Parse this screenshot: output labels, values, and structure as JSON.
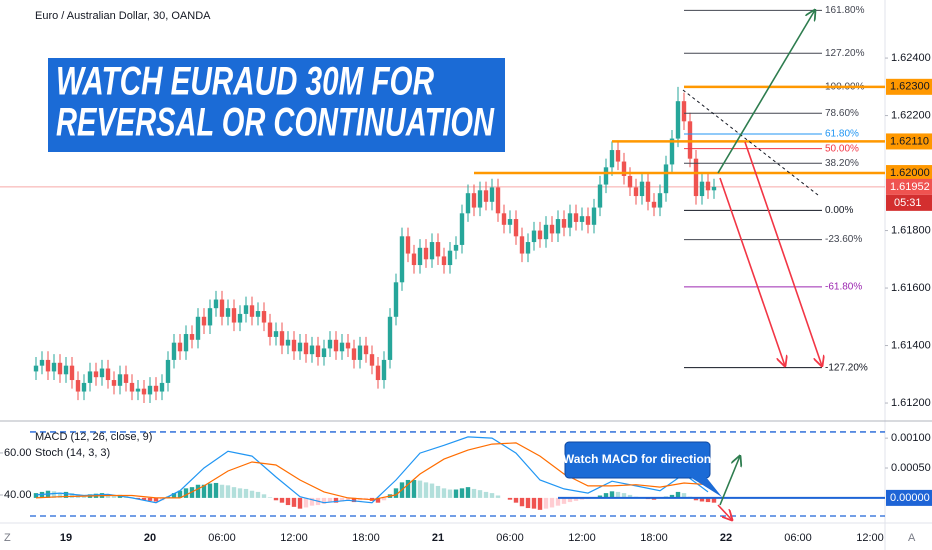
{
  "ui": {
    "left_icon": "Z",
    "right_icon": "A"
  },
  "chart_data": [
    {
      "type": "candlestick",
      "title": "Euro / Australian Dollar, 30, OANDA",
      "annotation": [
        "WATCH EURAUD 30M FOR",
        "REVERSAL OR CONTINUATION"
      ],
      "xlim": [
        -6,
        141.5
      ],
      "xticks": [
        {
          "value": 5,
          "label": "19"
        },
        {
          "value": 19,
          "label": "20"
        },
        {
          "value": 31,
          "label": "06:00"
        },
        {
          "value": 43,
          "label": "12:00"
        },
        {
          "value": 55,
          "label": "18:00"
        },
        {
          "value": 67,
          "label": "21"
        },
        {
          "value": 79,
          "label": "06:00"
        },
        {
          "value": 91,
          "label": "12:00"
        },
        {
          "value": 103,
          "label": "18:00"
        },
        {
          "value": 115,
          "label": "22"
        },
        {
          "value": 127,
          "label": "06:00"
        },
        {
          "value": 139,
          "label": "12:00"
        }
      ],
      "ylim": [
        1.61141,
        1.62602
      ],
      "yticks": [
        {
          "value": 1.624,
          "label": "1.62400"
        },
        {
          "value": 1.622,
          "label": "1.62200"
        },
        {
          "value": 1.618,
          "label": "1.61800"
        },
        {
          "value": 1.616,
          "label": "1.61600"
        },
        {
          "value": 1.614,
          "label": "1.61400"
        },
        {
          "value": 1.612,
          "label": "1.61200"
        }
      ],
      "colors": {
        "up": "#26a69a",
        "down": "#ef5350"
      },
      "open": [
        1.6131,
        1.6133,
        1.6135,
        1.6131,
        1.6134,
        1.613,
        1.6133,
        1.6128,
        1.6124,
        1.6127,
        1.6131,
        1.6129,
        1.6132,
        1.6128,
        1.6126,
        1.613,
        1.6127,
        1.6124,
        1.6125,
        1.6123,
        1.6126,
        1.6124,
        1.6127,
        1.6135,
        1.6141,
        1.6138,
        1.6144,
        1.6142,
        1.615,
        1.6147,
        1.6153,
        1.6156,
        1.615,
        1.6153,
        1.6148,
        1.6151,
        1.6154,
        1.615,
        1.6152,
        1.6148,
        1.6143,
        1.6145,
        1.614,
        1.6142,
        1.6138,
        1.6141,
        1.6137,
        1.614,
        1.6136,
        1.6139,
        1.6142,
        1.6138,
        1.6141,
        1.6139,
        1.6135,
        1.614,
        1.6137,
        1.6133,
        1.6128,
        1.6135,
        1.615,
        1.6162,
        1.6178,
        1.6172,
        1.6168,
        1.6174,
        1.617,
        1.6176,
        1.6171,
        1.6168,
        1.6173,
        1.6175,
        1.6186,
        1.6193,
        1.6188,
        1.6194,
        1.619,
        1.6195,
        1.6186,
        1.6182,
        1.6184,
        1.6178,
        1.6172,
        1.6176,
        1.618,
        1.6177,
        1.6182,
        1.6179,
        1.6184,
        1.6181,
        1.6186,
        1.6183,
        1.6185,
        1.6182,
        1.6188,
        1.6196,
        1.6202,
        1.6208,
        1.6204,
        1.6199,
        1.6195,
        1.6192,
        1.6197,
        1.619,
        1.6188,
        1.6193,
        1.6203,
        1.6212,
        1.6225,
        1.6218,
        1.6205,
        1.6192,
        1.6197,
        1.6194
      ],
      "high": [
        1.6136,
        1.6138,
        1.6138,
        1.6137,
        1.6137,
        1.6136,
        1.6136,
        1.6131,
        1.613,
        1.6134,
        1.6134,
        1.6135,
        1.6135,
        1.6131,
        1.6133,
        1.6133,
        1.613,
        1.6128,
        1.6128,
        1.6129,
        1.6129,
        1.613,
        1.6138,
        1.6144,
        1.6144,
        1.6147,
        1.6147,
        1.6153,
        1.6153,
        1.6156,
        1.6159,
        1.6159,
        1.6156,
        1.6156,
        1.6154,
        1.6157,
        1.6157,
        1.6155,
        1.6155,
        1.6151,
        1.6148,
        1.6148,
        1.6145,
        1.6145,
        1.6144,
        1.6144,
        1.6143,
        1.6143,
        1.6142,
        1.6145,
        1.6145,
        1.6144,
        1.6144,
        1.6142,
        1.6143,
        1.6143,
        1.614,
        1.6136,
        1.6138,
        1.6153,
        1.6165,
        1.6181,
        1.6181,
        1.6175,
        1.6177,
        1.6177,
        1.6179,
        1.6179,
        1.6174,
        1.6176,
        1.6178,
        1.6189,
        1.6196,
        1.6196,
        1.6197,
        1.6197,
        1.6198,
        1.6198,
        1.6189,
        1.6187,
        1.6187,
        1.6181,
        1.6179,
        1.6183,
        1.6183,
        1.6185,
        1.6185,
        1.6187,
        1.6187,
        1.6189,
        1.6189,
        1.6188,
        1.6188,
        1.6191,
        1.6199,
        1.6205,
        1.6211,
        1.6211,
        1.6207,
        1.6202,
        1.6198,
        1.62,
        1.62,
        1.6193,
        1.6196,
        1.6206,
        1.6215,
        1.623,
        1.6228,
        1.6221,
        1.6208,
        1.62,
        1.62,
        1.6198
      ],
      "low": [
        1.6128,
        1.613,
        1.6128,
        1.6128,
        1.6127,
        1.6127,
        1.6125,
        1.6121,
        1.6121,
        1.6124,
        1.6126,
        1.6126,
        1.6125,
        1.6123,
        1.6123,
        1.6124,
        1.6121,
        1.6121,
        1.612,
        1.612,
        1.6121,
        1.6121,
        1.6124,
        1.6132,
        1.6135,
        1.6135,
        1.6139,
        1.6139,
        1.6144,
        1.6144,
        1.615,
        1.6147,
        1.6147,
        1.6145,
        1.6145,
        1.6148,
        1.6147,
        1.6147,
        1.6145,
        1.614,
        1.614,
        1.6137,
        1.6137,
        1.6135,
        1.6135,
        1.6134,
        1.6134,
        1.6133,
        1.6133,
        1.6136,
        1.6135,
        1.6135,
        1.6136,
        1.6132,
        1.6132,
        1.6134,
        1.613,
        1.6125,
        1.6125,
        1.6132,
        1.6147,
        1.6159,
        1.6169,
        1.6165,
        1.6165,
        1.6167,
        1.6167,
        1.6168,
        1.6165,
        1.6165,
        1.617,
        1.6172,
        1.6183,
        1.6185,
        1.6185,
        1.6187,
        1.6187,
        1.6183,
        1.6179,
        1.6179,
        1.6175,
        1.6169,
        1.6169,
        1.6173,
        1.6174,
        1.6174,
        1.6176,
        1.6176,
        1.6178,
        1.6178,
        1.618,
        1.618,
        1.6179,
        1.6179,
        1.6185,
        1.6193,
        1.6199,
        1.6201,
        1.6196,
        1.6192,
        1.6189,
        1.6189,
        1.6187,
        1.6185,
        1.6185,
        1.619,
        1.62,
        1.6209,
        1.6215,
        1.6202,
        1.6189,
        1.6189,
        1.6191,
        1.6191
      ],
      "close": [
        1.6133,
        1.6135,
        1.6131,
        1.6134,
        1.613,
        1.6133,
        1.6128,
        1.6124,
        1.6127,
        1.6131,
        1.6129,
        1.6132,
        1.6128,
        1.6126,
        1.613,
        1.6127,
        1.6124,
        1.6125,
        1.6123,
        1.6126,
        1.6124,
        1.6127,
        1.6135,
        1.6141,
        1.6138,
        1.6144,
        1.6142,
        1.615,
        1.6147,
        1.6153,
        1.6156,
        1.615,
        1.6153,
        1.6148,
        1.6151,
        1.6154,
        1.615,
        1.6152,
        1.6148,
        1.6143,
        1.6145,
        1.614,
        1.6142,
        1.6138,
        1.6141,
        1.6137,
        1.614,
        1.6136,
        1.6139,
        1.6142,
        1.6138,
        1.6141,
        1.6139,
        1.6135,
        1.614,
        1.6137,
        1.6133,
        1.6128,
        1.6135,
        1.615,
        1.6162,
        1.6178,
        1.6172,
        1.6168,
        1.6174,
        1.617,
        1.6176,
        1.6171,
        1.6168,
        1.6173,
        1.6175,
        1.6186,
        1.6193,
        1.6188,
        1.6194,
        1.619,
        1.6195,
        1.6186,
        1.6182,
        1.6184,
        1.6178,
        1.6172,
        1.6176,
        1.618,
        1.6177,
        1.6182,
        1.6179,
        1.6184,
        1.6181,
        1.6186,
        1.6183,
        1.6185,
        1.6182,
        1.6188,
        1.6196,
        1.6202,
        1.6208,
        1.6204,
        1.6199,
        1.6195,
        1.6192,
        1.6197,
        1.619,
        1.6188,
        1.6193,
        1.6203,
        1.6212,
        1.6225,
        1.6218,
        1.6205,
        1.6192,
        1.6197,
        1.6194,
        1.61952
      ],
      "levels": [
        {
          "value": 1.623,
          "label": "1.62300",
          "start": 108
        },
        {
          "value": 1.6211,
          "label": "1.62110",
          "start": 96
        },
        {
          "value": 1.62,
          "label": "1.62000",
          "start": 73
        }
      ],
      "level_color": "#ff9800",
      "last_price": {
        "value": 1.61952,
        "label": "1.61952",
        "color": "#ef5350"
      },
      "countdown": "05:31",
      "fib_x": [
        108,
        131
      ],
      "fib_range": [
        1.6187,
        1.623
      ],
      "fib_levels": [
        {
          "value": 161.8,
          "label": "161.80%",
          "color": "#434651"
        },
        {
          "value": 127.2,
          "label": "127.20%",
          "color": "#434651"
        },
        {
          "value": 100,
          "label": "100.00%",
          "color": "#434651"
        },
        {
          "value": 78.6,
          "label": "78.60%",
          "color": "#434651"
        },
        {
          "value": 61.8,
          "label": "61.80%",
          "color": "#2196f3"
        },
        {
          "value": 50,
          "label": "50.00%",
          "color": "#f23645"
        },
        {
          "value": 38.2,
          "label": "38.20%",
          "color": "#434651"
        },
        {
          "value": 0,
          "label": "0.00%",
          "color": "#131722"
        },
        {
          "value": -23.6,
          "label": "-23.60%",
          "color": "#434651"
        },
        {
          "value": -61.8,
          "label": "-61.80%",
          "color": "#9c27b0"
        },
        {
          "value": -127.2,
          "label": "-127.20%",
          "color": "#131722"
        }
      ]
    },
    {
      "type": "macd",
      "title": "MACD (12, 26, close, 9)",
      "subtitle": "Stoch (14, 3, 3)",
      "annotation": "Watch MACD for direction",
      "ylim": [
        -0.00037,
        0.00122
      ],
      "yticks": [
        {
          "value": 0.001,
          "label": "0.00100"
        },
        {
          "value": 0.0005,
          "label": "0.00050"
        }
      ],
      "zero_line": {
        "value": 0,
        "label": "0.00000",
        "start": 87,
        "color": "#1e64d6"
      },
      "stoch_lim": [
        28.1,
        73.3
      ],
      "stoch_ticks": [
        {
          "value": 60,
          "label": "60.00"
        },
        {
          "value": 40,
          "label": "40.00"
        }
      ],
      "stoch_bands": [
        70,
        30
      ],
      "histogram_colors": {
        "pos_up": "#26a69a",
        "pos_down": "#b2dfdb",
        "neg_down": "#ef5350",
        "neg_up": "#ffcdd2"
      },
      "histogram": [
        8e-05,
        0.0001,
        0.00012,
        0.00011,
        9e-05,
        0.0001,
        8e-05,
        6e-05,
        5e-05,
        6e-05,
        7e-05,
        8e-05,
        6e-05,
        4e-05,
        5e-05,
        3e-05,
        1e-05,
        -2e-05,
        -4e-05,
        -5e-05,
        -6e-05,
        -4e-05,
        2e-05,
        8e-05,
        0.00012,
        0.00016,
        0.00018,
        0.00022,
        0.00022,
        0.00024,
        0.00025,
        0.00022,
        0.00021,
        0.00018,
        0.00016,
        0.00015,
        0.00012,
        0.0001,
        6e-05,
        1e-05,
        -4e-05,
        -8e-05,
        -0.00012,
        -0.00015,
        -0.00018,
        -0.00016,
        -0.00013,
        -0.00012,
        -0.0001,
        -7e-05,
        -8e-05,
        -6e-05,
        -5e-05,
        -7e-05,
        -4e-05,
        -3e-05,
        -5e-05,
        -8e-05,
        -4e-05,
        6e-05,
        0.00016,
        0.00026,
        0.0003,
        0.0003,
        0.00029,
        0.00026,
        0.00024,
        0.0002,
        0.00016,
        0.00014,
        0.00014,
        0.00016,
        0.00018,
        0.00015,
        0.00013,
        0.0001,
        8e-05,
        4e-05,
        0,
        -3e-05,
        -8e-05,
        -0.00014,
        -0.00017,
        -0.00018,
        -0.0002,
        -0.00018,
        -0.00016,
        -0.00013,
        -0.0001,
        -7e-05,
        -5e-05,
        -3e-05,
        -2e-05,
        0,
        4e-05,
        8e-05,
        0.00011,
        0.0001,
        8e-05,
        5e-05,
        2e-05,
        1e-05,
        -2e-05,
        -3e-05,
        -1e-05,
        2e-05,
        5e-05,
        0.0001,
        8e-05,
        2e-05,
        -4e-05,
        -6e-05,
        -7e-05,
        -8e-05
      ],
      "series": [
        {
          "color": "#2196f3",
          "x": [
            0,
            4,
            8,
            12,
            16,
            20,
            24,
            28,
            32,
            36,
            40,
            44,
            48,
            52,
            56,
            60,
            64,
            68,
            72,
            76,
            80,
            84,
            88,
            92,
            96,
            100,
            104,
            108,
            112
          ],
          "values": [
            5e-05,
            8e-05,
            4e-05,
            6e-05,
            0,
            -8e-05,
            0.00012,
            0.0005,
            0.00078,
            0.0007,
            0.00035,
            2e-05,
            -8e-05,
            -4e-05,
            -8e-05,
            0.0003,
            0.00075,
            0.00088,
            0.00102,
            0.001,
            0.00075,
            0.0003,
            0.00015,
            8e-05,
            0.00028,
            0.0002,
            0.00012,
            0.0004,
            0.0001
          ]
        },
        {
          "color": "#ff6d00",
          "x": [
            0,
            4,
            8,
            12,
            16,
            20,
            24,
            28,
            32,
            36,
            40,
            44,
            48,
            52,
            56,
            60,
            64,
            68,
            72,
            76,
            80,
            84,
            88,
            92,
            96,
            100,
            104,
            108,
            112
          ],
          "values": [
            0,
            2e-05,
            3e-05,
            4e-05,
            4e-05,
            0,
            0,
            0.0002,
            0.00045,
            0.0006,
            0.00055,
            0.0003,
            0.0001,
            0,
            -3e-05,
            5e-05,
            0.0004,
            0.00065,
            0.0008,
            0.0009,
            0.00092,
            0.0007,
            0.0004,
            0.0002,
            0.0002,
            0.00022,
            0.00018,
            0.00025,
            0.00022
          ]
        }
      ]
    }
  ]
}
